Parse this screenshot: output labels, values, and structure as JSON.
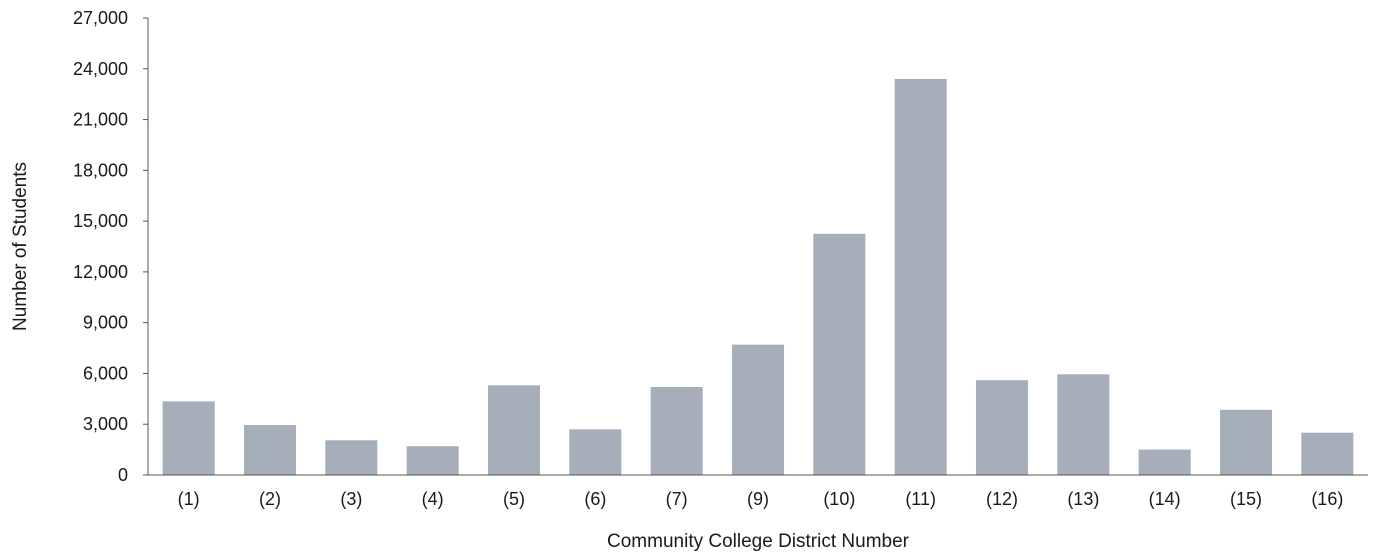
{
  "chart_data": {
    "type": "bar",
    "title": "",
    "xlabel": "Community College District Number",
    "ylabel": "Number of Students",
    "categories": [
      "(1)",
      "(2)",
      "(3)",
      "(4)",
      "(5)",
      "(6)",
      "(7)",
      "(9)",
      "(10)",
      "(11)",
      "(12)",
      "(13)",
      "(14)",
      "(15)",
      "(16)"
    ],
    "values": [
      4350,
      2950,
      2050,
      1700,
      5300,
      2700,
      5200,
      7700,
      14250,
      23400,
      5600,
      5950,
      1500,
      3850,
      2500
    ],
    "ylim": [
      0,
      27000
    ],
    "yticks": [
      0,
      3000,
      6000,
      9000,
      12000,
      15000,
      18000,
      21000,
      24000,
      27000
    ],
    "ytick_labels": [
      "0",
      "3,000",
      "6,000",
      "9,000",
      "12,000",
      "15,000",
      "18,000",
      "21,000",
      "24,000",
      "27,000"
    ],
    "bar_color": "#a6aeba",
    "axis_color": "#555555",
    "grid": false,
    "legend": "none"
  }
}
